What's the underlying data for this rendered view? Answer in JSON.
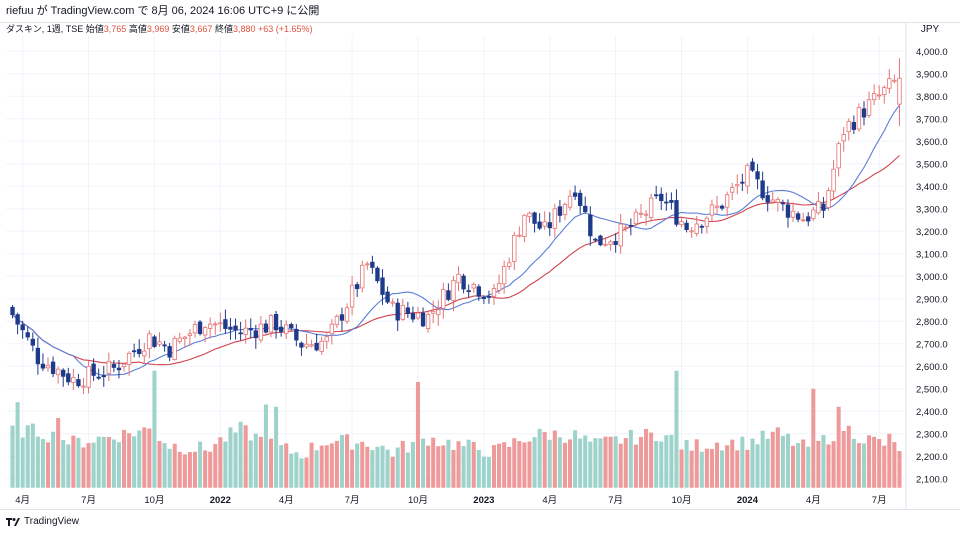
{
  "header": {
    "publish_line": "riefuu が TradingView.com で 8月 06, 2024 16:06 UTC+9 に公開"
  },
  "legend": {
    "symbol_line": "ダスキン, 1週, TSE",
    "open_label": "始値",
    "open_value": "3,765",
    "high_label": "高値",
    "high_value": "3,969",
    "low_label": "安値",
    "low_value": "3,667",
    "close_label": "終値",
    "close_value": "3,880",
    "change": "+63 (+1.65%)"
  },
  "currency": "JPY",
  "footer": {
    "brand": "TradingView"
  },
  "colors": {
    "up": "#ef9a9a",
    "up_border": "#e57373",
    "down": "#1e3a8a",
    "vol_up": "#ef9a9a",
    "vol_down": "#9ed3cb",
    "ma_fast": "#5b7fd6",
    "ma_slow": "#d1434e",
    "grid": "#f0f3fa"
  },
  "chart_data": {
    "type": "candlestick",
    "title": "ダスキン, 1週, TSE",
    "ylim": [
      2050,
      4050
    ],
    "y_ticks": [
      "2,100.0",
      "2,200.0",
      "2,300.0",
      "2,400.0",
      "2,500.0",
      "2,600.0",
      "2,700.0",
      "2,800.0",
      "2,900.0",
      "3,000.0",
      "3,100.0",
      "3,200.0",
      "3,300.0",
      "3,400.0",
      "3,500.0",
      "3,600.0",
      "3,700.0",
      "3,800.0",
      "3,900.0",
      "4,000.0"
    ],
    "y_tick_values": [
      2100,
      2200,
      2300,
      2400,
      2500,
      2600,
      2700,
      2800,
      2900,
      3000,
      3100,
      3200,
      3300,
      3400,
      3500,
      3600,
      3700,
      3800,
      3900,
      4000
    ],
    "x_ticks": [
      {
        "label": "4月",
        "index": 2,
        "bold": false
      },
      {
        "label": "7月",
        "index": 15,
        "bold": false
      },
      {
        "label": "10月",
        "index": 28,
        "bold": false
      },
      {
        "label": "2022",
        "index": 41,
        "bold": true
      },
      {
        "label": "4月",
        "index": 54,
        "bold": false
      },
      {
        "label": "7月",
        "index": 67,
        "bold": false
      },
      {
        "label": "10月",
        "index": 80,
        "bold": false
      },
      {
        "label": "2023",
        "index": 93,
        "bold": true
      },
      {
        "label": "4月",
        "index": 106,
        "bold": false
      },
      {
        "label": "7月",
        "index": 119,
        "bold": false
      },
      {
        "label": "10月",
        "index": 132,
        "bold": false
      },
      {
        "label": "2024",
        "index": 145,
        "bold": true
      },
      {
        "label": "4月",
        "index": 158,
        "bold": false
      },
      {
        "label": "7月",
        "index": 171,
        "bold": false
      }
    ],
    "anchors": [
      [
        0,
        2830
      ],
      [
        5,
        2640
      ],
      [
        12,
        2540
      ],
      [
        20,
        2590
      ],
      [
        27,
        2730
      ],
      [
        31,
        2680
      ],
      [
        38,
        2800
      ],
      [
        45,
        2750
      ],
      [
        52,
        2790
      ],
      [
        57,
        2700
      ],
      [
        62,
        2710
      ],
      [
        70,
        3050
      ],
      [
        75,
        2850
      ],
      [
        82,
        2820
      ],
      [
        88,
        3000
      ],
      [
        95,
        2910
      ],
      [
        101,
        3280
      ],
      [
        105,
        3200
      ],
      [
        111,
        3400
      ],
      [
        115,
        3150
      ],
      [
        121,
        3200
      ],
      [
        128,
        3350
      ],
      [
        133,
        3220
      ],
      [
        139,
        3300
      ],
      [
        145,
        3450
      ],
      [
        151,
        3320
      ],
      [
        156,
        3260
      ],
      [
        160,
        3300
      ],
      [
        164,
        3650
      ],
      [
        168,
        3740
      ],
      [
        175,
        3880
      ]
    ],
    "volume_anchors": [
      [
        0,
        2320
      ],
      [
        5,
        2310
      ],
      [
        12,
        2260
      ],
      [
        20,
        2290
      ],
      [
        27,
        2320
      ],
      [
        31,
        2250
      ],
      [
        38,
        2230
      ],
      [
        45,
        2320
      ],
      [
        52,
        2240
      ],
      [
        57,
        2210
      ],
      [
        62,
        2270
      ],
      [
        70,
        2260
      ],
      [
        75,
        2220
      ],
      [
        82,
        2280
      ],
      [
        88,
        2250
      ],
      [
        95,
        2220
      ],
      [
        101,
        2280
      ],
      [
        105,
        2300
      ],
      [
        111,
        2290
      ],
      [
        115,
        2250
      ],
      [
        121,
        2280
      ],
      [
        128,
        2300
      ],
      [
        133,
        2240
      ],
      [
        139,
        2260
      ],
      [
        145,
        2260
      ],
      [
        151,
        2300
      ],
      [
        156,
        2240
      ],
      [
        160,
        2270
      ],
      [
        164,
        2330
      ],
      [
        168,
        2280
      ],
      [
        175,
        2240
      ]
    ],
    "volume_spikes": [
      [
        1,
        2440
      ],
      [
        9,
        2370
      ],
      [
        28,
        2580
      ],
      [
        50,
        2430
      ],
      [
        52,
        2420
      ],
      [
        80,
        2530
      ],
      [
        131,
        2580
      ],
      [
        158,
        2500
      ],
      [
        163,
        2420
      ],
      [
        173,
        2300
      ]
    ],
    "last_index": 175,
    "ma_fast_period": 13,
    "ma_slow_period": 26,
    "seed": 7
  }
}
